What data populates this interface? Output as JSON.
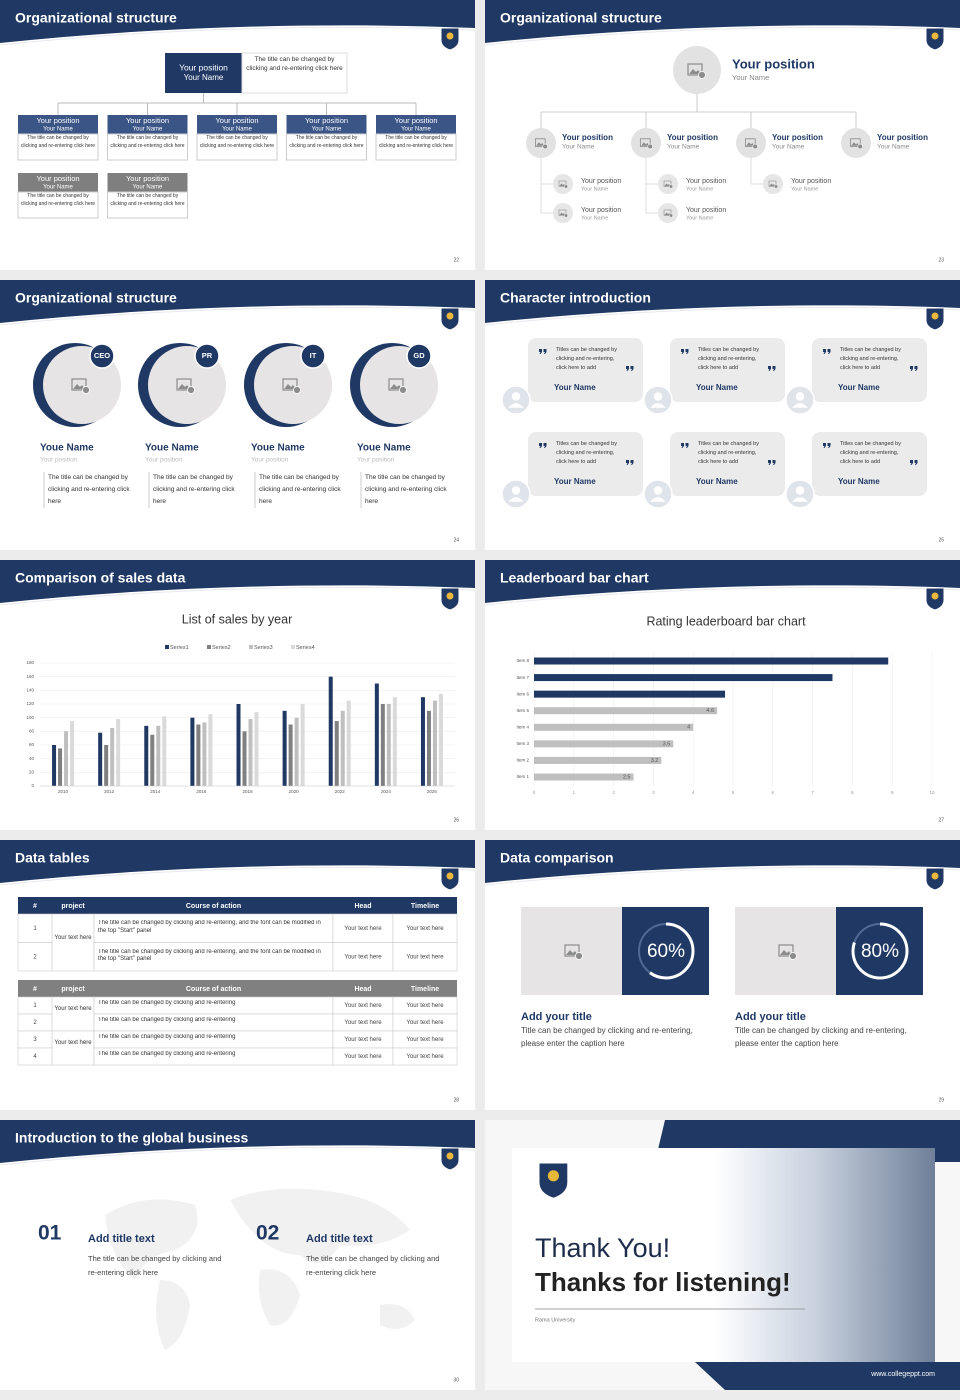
{
  "slides": [
    {
      "title": "Organizational structure",
      "page": "22",
      "top": {
        "position": "Your position",
        "name": "Your Name",
        "desc": "The title can be changed by clicking and re-entering click here"
      },
      "boxes": [
        {
          "position": "Your position",
          "name": "Your Name",
          "desc": "The title can be changed by clicking and re-entering click here"
        },
        {
          "position": "Your position",
          "name": "Your Name",
          "desc": "The title can be changed by clicking and re-entering click here"
        },
        {
          "position": "Your position",
          "name": "Your Name",
          "desc": "The title can be changed by clicking and re-entering click here"
        },
        {
          "position": "Your position",
          "name": "Your Name",
          "desc": "The title can be changed by clicking and re-entering click here"
        },
        {
          "position": "Your position",
          "name": "Your Name",
          "desc": "The title can be changed by clicking and re-entering click here"
        },
        {
          "position": "Your position",
          "name": "Your Name",
          "desc": "The title can be changed by clicking and re-entering click here"
        },
        {
          "position": "Your position",
          "name": "Your Name",
          "desc": "The title can be changed by clicking and re-entering click here"
        }
      ]
    },
    {
      "title": "Organizational structure",
      "page": "23",
      "head": {
        "position": "Your position",
        "name": "Your Name"
      },
      "columns": [
        {
          "lead": {
            "position": "Your position",
            "name": "Your Name"
          },
          "subs": [
            {
              "position": "Your position",
              "name": "Your Name"
            },
            {
              "position": "Your position",
              "name": "Your Name"
            }
          ]
        },
        {
          "lead": {
            "position": "Your position",
            "name": "Your Name"
          },
          "subs": [
            {
              "position": "Your position",
              "name": "Your Name"
            },
            {
              "position": "Your position",
              "name": "Your Name"
            }
          ]
        },
        {
          "lead": {
            "position": "Your position",
            "name": "Your Name"
          },
          "subs": [
            {
              "position": "Your position",
              "name": "Your Name"
            }
          ]
        },
        {
          "lead": {
            "position": "Your position",
            "name": "Your Name"
          },
          "subs": []
        }
      ]
    },
    {
      "title": "Organizational structure",
      "page": "24",
      "people": [
        {
          "badge": "CEO",
          "name": "Youe Name",
          "position": "Your position",
          "desc": "The title can be changed by clicking and re-entering click here"
        },
        {
          "badge": "PR",
          "name": "Youe Name",
          "position": "Your position",
          "desc": "The title can be changed by clicking and re-entering click here"
        },
        {
          "badge": "IT",
          "name": "Youe Name",
          "position": "Your position",
          "desc": "The title can be changed by clicking and re-entering click here"
        },
        {
          "badge": "GD",
          "name": "Youe Name",
          "position": "Your position",
          "desc": "The title can be changed by clicking and re-entering click here"
        }
      ]
    },
    {
      "title": "Character introduction",
      "page": "25",
      "cards": [
        {
          "quote": "Titles can be changed by clicking and re-entering, click here to add",
          "name": "Your Name"
        },
        {
          "quote": "Titles can be changed by clicking and re-entering, click here to add",
          "name": "Your Name"
        },
        {
          "quote": "Titles can be changed by clicking and re-entering, click here to add",
          "name": "Your Name"
        },
        {
          "quote": "Titles can be changed by clicking and re-entering, click here to add",
          "name": "Your Name"
        },
        {
          "quote": "Titles can be changed by clicking and re-entering, click here to add",
          "name": "Your Name"
        },
        {
          "quote": "Titles can be changed by clicking and re-entering, click here to add",
          "name": "Your Name"
        }
      ]
    },
    {
      "title": "Comparison of sales data",
      "page": "26",
      "chart": {
        "type": "bar",
        "title": "List of sales by year",
        "categories": [
          "2010",
          "2012",
          "2014",
          "2016",
          "2018",
          "2020",
          "2022",
          "2024",
          "2026"
        ],
        "series": [
          {
            "name": "Series1",
            "color": "#1f3864",
            "values": [
              60,
              78,
              88,
              100,
              120,
              110,
              160,
              150,
              130
            ]
          },
          {
            "name": "Series2",
            "color": "#808080",
            "values": [
              55,
              60,
              75,
              90,
              80,
              90,
              95,
              120,
              110
            ]
          },
          {
            "name": "Series3",
            "color": "#bfbfbf",
            "values": [
              80,
              85,
              88,
              93,
              98,
              100,
              110,
              120,
              125
            ]
          },
          {
            "name": "Series4",
            "color": "#dadada",
            "values": [
              95,
              98,
              102,
              105,
              108,
              120,
              125,
              130,
              135
            ]
          }
        ],
        "ylim": [
          0,
          180
        ],
        "yticks": [
          0,
          20,
          40,
          60,
          80,
          100,
          120,
          140,
          160,
          180
        ],
        "grid": true
      }
    },
    {
      "title": "Leaderboard bar chart",
      "page": "27",
      "chart": {
        "type": "barh",
        "title": "Rating leaderboard bar chart",
        "categories": [
          "Item 1",
          "Item 2",
          "Item 3",
          "Item 4",
          "Item 5",
          "Item 6",
          "Item 7",
          "Item 8"
        ],
        "values": [
          2.5,
          3.2,
          3.5,
          4,
          4.6,
          4.8,
          7.5,
          8.9
        ],
        "value_labels": [
          "2.5",
          "3.2",
          "3.5",
          "4",
          "4.6",
          null,
          null,
          null
        ],
        "colors": [
          "#bfbfbf",
          "#bfbfbf",
          "#bfbfbf",
          "#bfbfbf",
          "#bfbfbf",
          "#1f3864",
          "#1f3864",
          "#1f3864"
        ],
        "xlim": [
          0,
          10
        ],
        "xticks": [
          0,
          1,
          2,
          3,
          4,
          5,
          6,
          7,
          8,
          9,
          10
        ],
        "grid": true
      }
    },
    {
      "title": "Data tables",
      "page": "28",
      "tables": [
        {
          "header": [
            "#",
            "project",
            "Course of action",
            "Head",
            "Timeline"
          ],
          "groups": [
            {
              "project": "Your text here",
              "rows": [
                [
                  "1",
                  "The title can be changed by clicking and re-entering, and the font can be modified in the top \"Start\" panel",
                  "Your text here",
                  "Your text here"
                ],
                [
                  "2",
                  "The title can be changed by clicking and re-entering, and the font can be modified in the top \"Start\" panel",
                  "Your text here",
                  "Your text here"
                ]
              ]
            }
          ]
        },
        {
          "header": [
            "#",
            "project",
            "Course of action",
            "Head",
            "Timeline"
          ],
          "groups": [
            {
              "project": "Your text here",
              "rows": [
                [
                  "1",
                  "The title can be changed by clicking and re-entering",
                  "Your text here",
                  "Your text here"
                ],
                [
                  "2",
                  "The title can be changed by clicking and re-entering",
                  "Your text here",
                  "Your text here"
                ]
              ]
            },
            {
              "project": "Your text here",
              "rows": [
                [
                  "3",
                  "The title can be changed by clicking and re-entering",
                  "Your text here",
                  "Your text here"
                ],
                [
                  "4",
                  "The title can be changed by clicking and re-entering",
                  "Your text here",
                  "Your text here"
                ]
              ]
            }
          ]
        }
      ]
    },
    {
      "title": "Data comparison",
      "page": "29",
      "items": [
        {
          "percent": 60,
          "percent_label": "60%",
          "title": "Add your title",
          "desc": "Title can be changed by clicking and re-entering, please enter the caption here"
        },
        {
          "percent": 80,
          "percent_label": "80%",
          "title": "Add your title",
          "desc": "Title can be changed by clicking and re-entering, please enter the caption here"
        }
      ]
    },
    {
      "title": "Introduction to the global business",
      "page": "30",
      "items": [
        {
          "number": "01",
          "title": "Add title text",
          "desc": "The title can be changed by clicking and re-entering click here"
        },
        {
          "number": "02",
          "title": "Add title text",
          "desc": "The title can be changed by clicking and re-entering click here"
        }
      ]
    },
    {
      "thanks": "Thank You!",
      "listening": "Thanks for listening!",
      "university": "Rama University",
      "url": "www.collegeppt.com"
    }
  ]
}
